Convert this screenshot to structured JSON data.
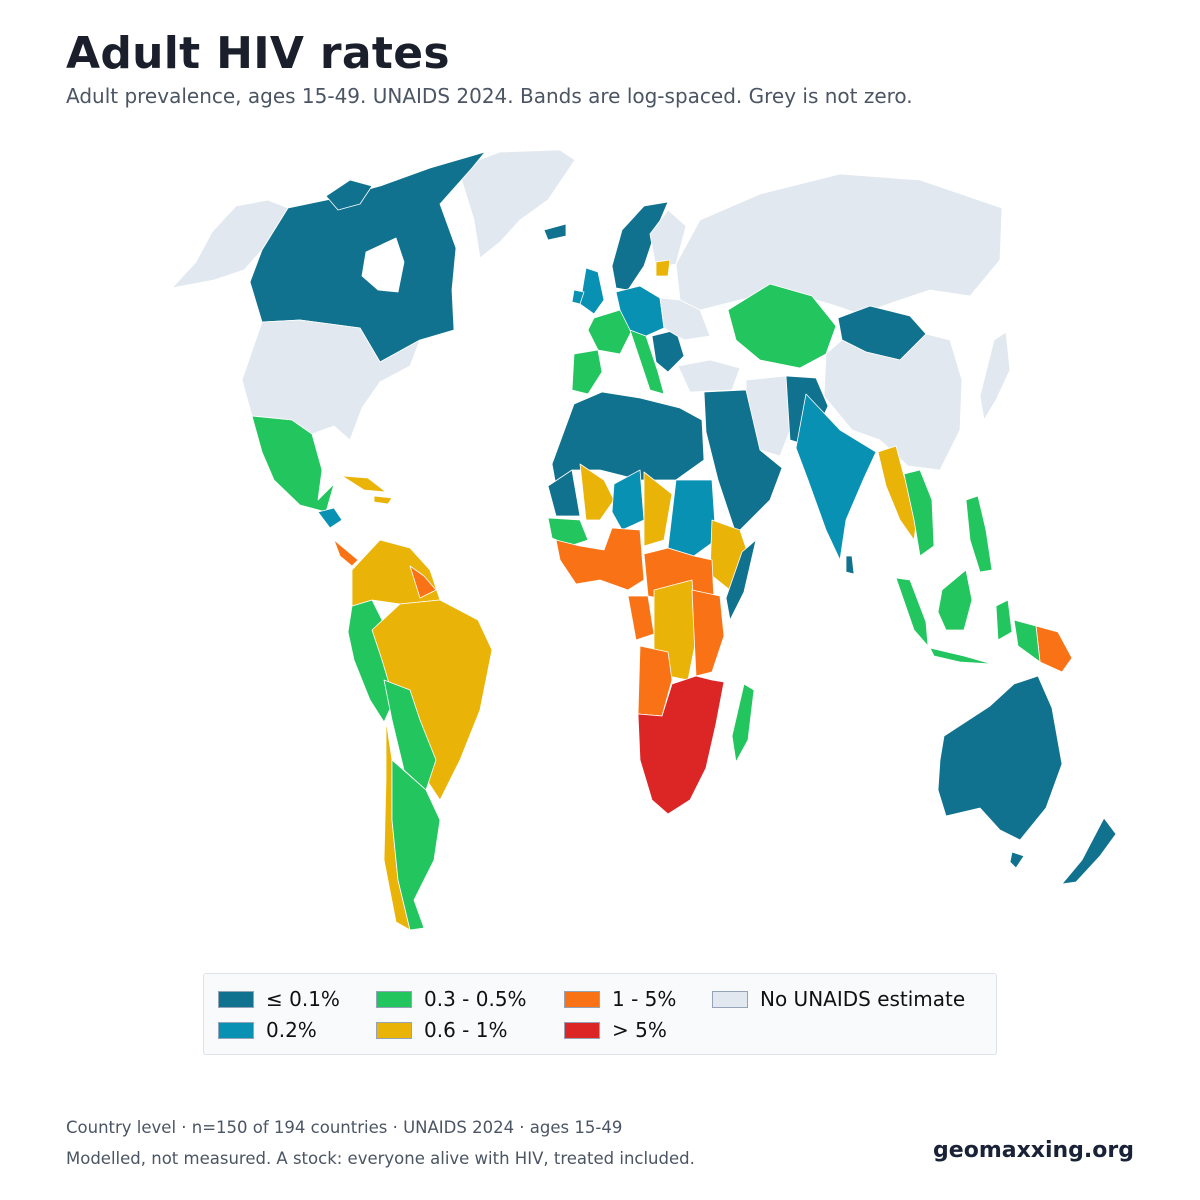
{
  "title": "Adult HIV rates",
  "subtitle": "Adult prevalence, ages 15-49. UNAIDS 2024. Bands are log-spaced. Grey is not zero.",
  "legend": {
    "items": [
      {
        "label": "≤ 0.1%",
        "color": "#10728f"
      },
      {
        "label": "0.2%",
        "color": "#0891b2"
      },
      {
        "label": "0.3 - 0.5%",
        "color": "#22c55e"
      },
      {
        "label": "0.6 - 1%",
        "color": "#eab308"
      },
      {
        "label": "1 - 5%",
        "color": "#f97316"
      },
      {
        "label": "> 5%",
        "color": "#dc2626"
      },
      {
        "label": "No UNAIDS estimate",
        "color": "#e2e8f0"
      }
    ]
  },
  "footer": {
    "line1": "Country level · n=150 of 194 countries · UNAIDS 2024 · ages 15-49",
    "line2": "Modelled, not measured. A stock: everyone alive with HIV, treated included."
  },
  "brand": "geomaxxing.org",
  "colors": {
    "b1": "#10728f",
    "b2": "#0891b2",
    "b3": "#22c55e",
    "b4": "#eab308",
    "b5": "#f97316",
    "b6": "#dc2626",
    "none": "#e2e8f0"
  }
}
